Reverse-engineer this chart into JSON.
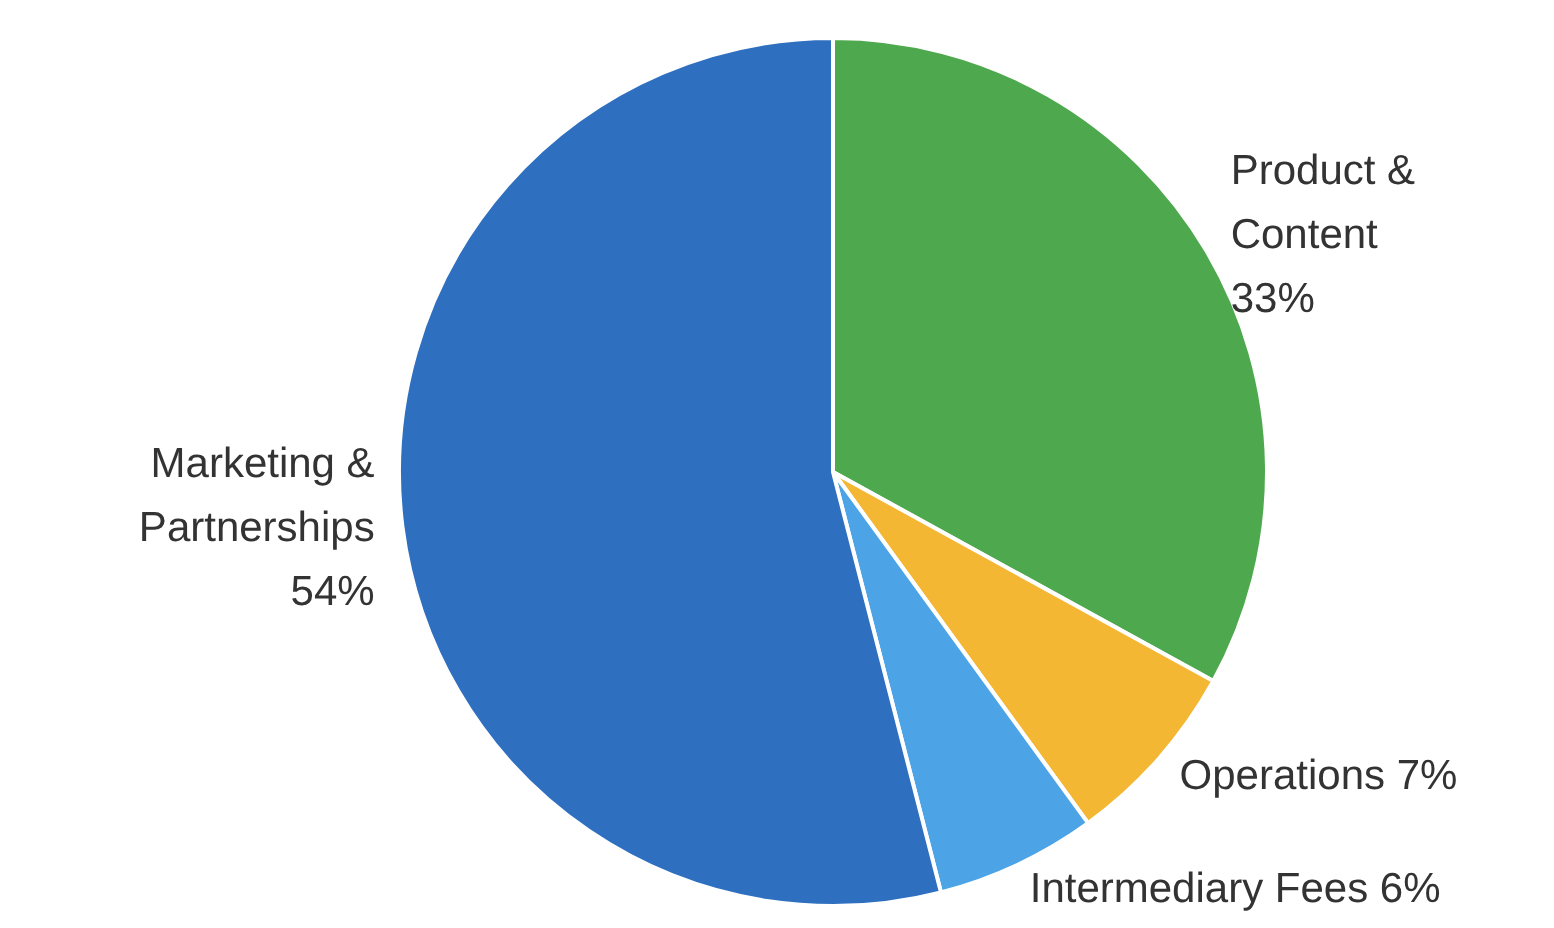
{
  "chart_data": {
    "type": "pie",
    "categories": [
      "Product & Content",
      "Operations",
      "Intermediary Fees",
      "Marketing & Partnerships"
    ],
    "values": [
      33,
      7,
      6,
      54
    ],
    "colors": [
      "#4ea94e",
      "#f3b733",
      "#4ca3e6",
      "#2e6fc0"
    ],
    "value_labels": [
      "33%",
      "7%",
      "6%",
      "54%"
    ],
    "legend": false
  }
}
